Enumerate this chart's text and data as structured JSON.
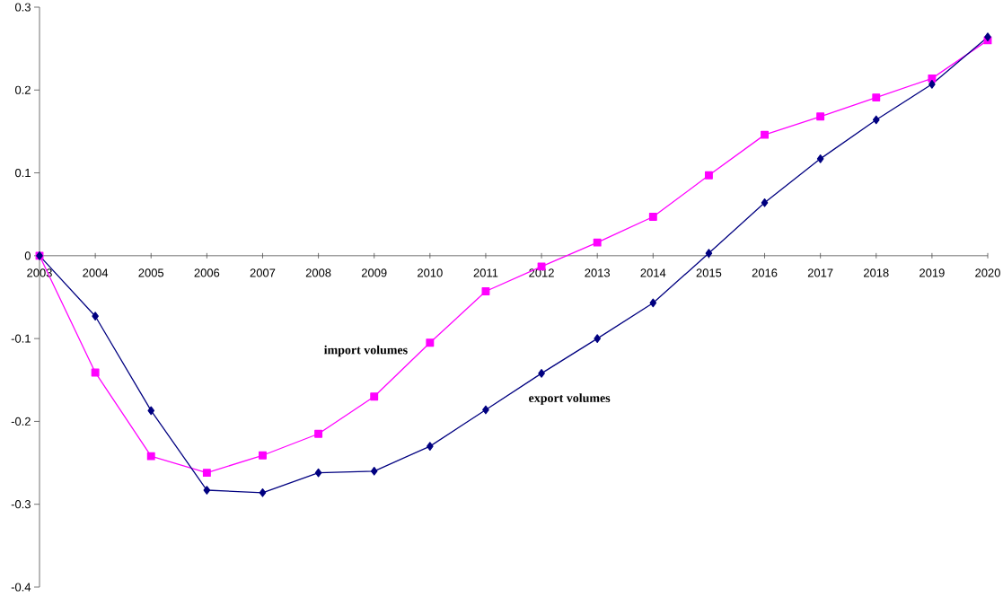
{
  "chart_data": {
    "type": "line",
    "categories": [
      "2003",
      "2004",
      "2005",
      "2006",
      "2007",
      "2008",
      "2009",
      "2010",
      "2011",
      "2012",
      "2013",
      "2014",
      "2015",
      "2016",
      "2017",
      "2018",
      "2019",
      "2020"
    ],
    "series": [
      {
        "name": "export volumes",
        "color": "#000080",
        "marker": "diamond",
        "values": [
          0,
          -0.073,
          -0.187,
          -0.283,
          -0.286,
          -0.262,
          -0.26,
          -0.23,
          -0.186,
          -0.142,
          -0.1,
          -0.057,
          0.003,
          0.064,
          0.117,
          0.164,
          0.207,
          0.264
        ]
      },
      {
        "name": "import volumes",
        "color": "#ff00ff",
        "marker": "square",
        "values": [
          0,
          -0.141,
          -0.242,
          -0.262,
          -0.241,
          -0.215,
          -0.17,
          -0.105,
          -0.043,
          -0.013,
          0.016,
          0.047,
          0.097,
          0.146,
          0.168,
          0.191,
          0.214,
          0.26
        ]
      }
    ],
    "ylim": [
      -0.4,
      0.3
    ],
    "yticks": [
      -0.4,
      -0.3,
      -0.2,
      -0.1,
      0,
      0.1,
      0.2,
      0.3
    ],
    "line_style": "solid"
  }
}
